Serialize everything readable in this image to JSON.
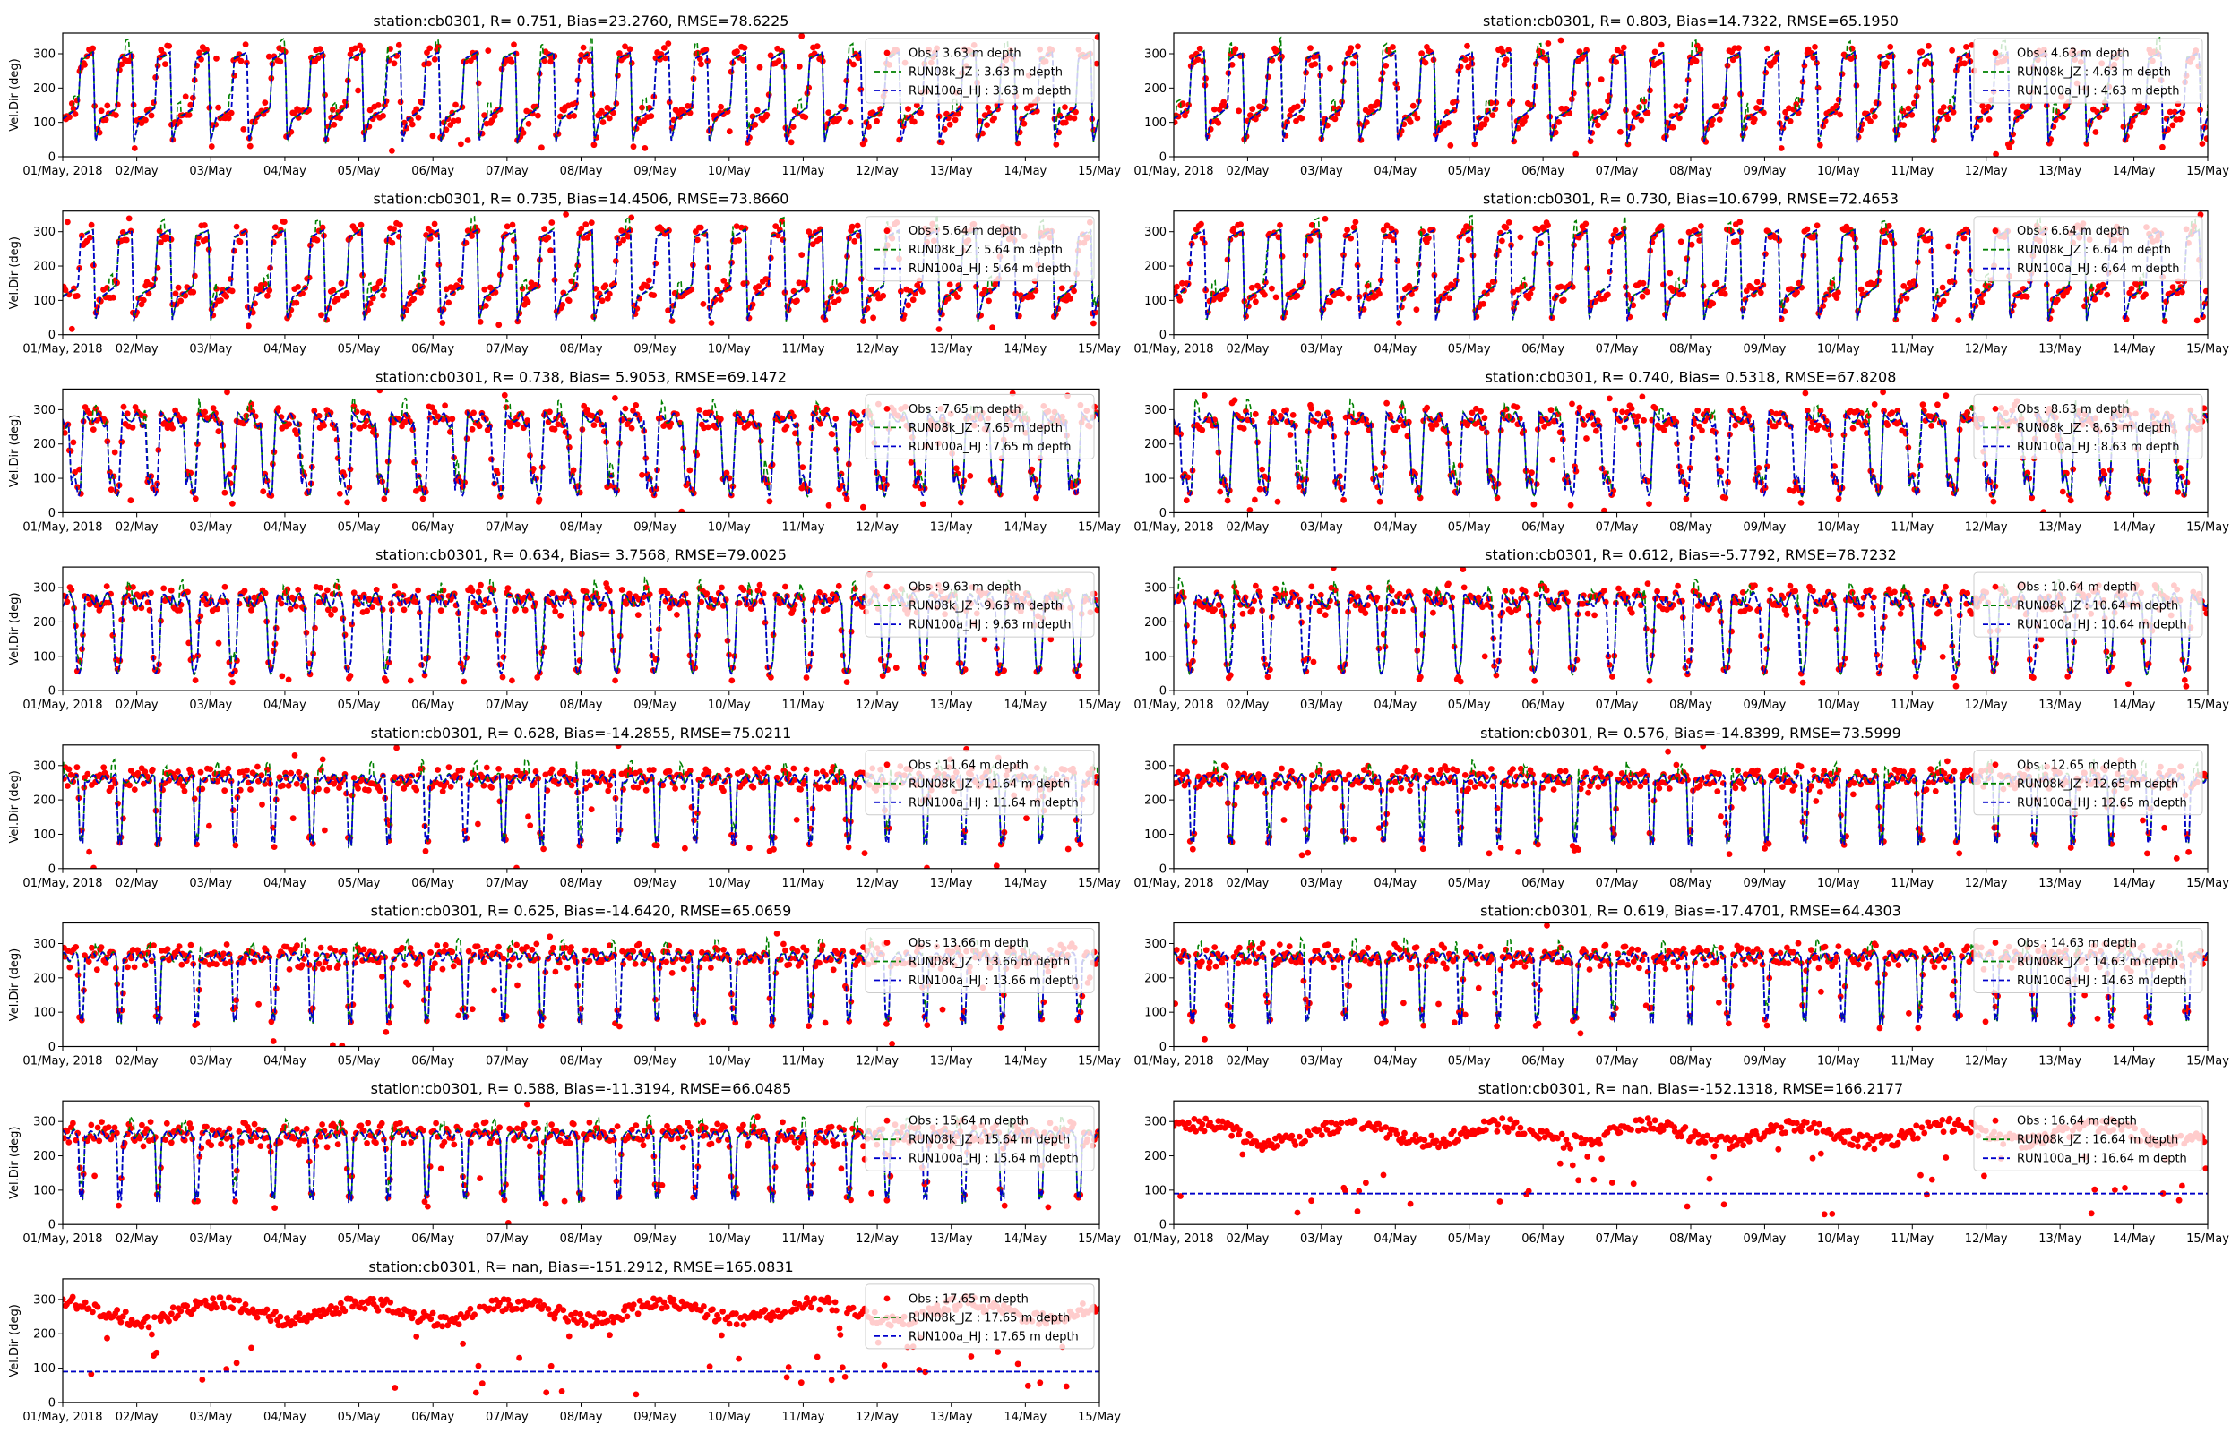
{
  "figure": {
    "x_tick_labels": [
      "01/May, 2018",
      "02/May",
      "03/May",
      "04/May",
      "05/May",
      "06/May",
      "07/May",
      "08/May",
      "09/May",
      "10/May",
      "11/May",
      "12/May",
      "13/May",
      "14/May",
      "15/May"
    ],
    "y_ticks": [
      0,
      100,
      200,
      300
    ],
    "ylabel": "Vel.Dir (deg)",
    "colors": {
      "obs": "#ff0000",
      "run08k": "#008000",
      "run100a": "#0000cc"
    }
  },
  "chart_data": [
    {
      "type": "scatter",
      "title": "station:cb0301, R= 0.751, Bias=23.2760, RMSE=78.6225",
      "depth": "3.63",
      "pattern": "dir1",
      "ylabel": "Vel.Dir (deg)",
      "ylim": [
        0,
        360
      ],
      "x_range": [
        "01/May, 2018",
        "15/May"
      ],
      "legend": [
        "Obs : 3.63 m depth",
        "RUN08k_JZ : 3.63 m depth",
        "RUN100a_HJ : 3.63 m depth"
      ],
      "legend_loc": "upper right"
    },
    {
      "type": "scatter",
      "title": "station:cb0301, R= 0.803, Bias=14.7322, RMSE=65.1950",
      "depth": "4.63",
      "pattern": "dir1",
      "ylabel": "",
      "ylim": [
        0,
        360
      ],
      "x_range": [
        "01/May, 2018",
        "15/May"
      ],
      "legend": [
        "Obs : 4.63 m depth",
        "RUN08k_JZ : 4.63 m depth",
        "RUN100a_HJ : 4.63 m depth"
      ],
      "legend_loc": "upper right"
    },
    {
      "type": "scatter",
      "title": "station:cb0301, R= 0.735, Bias=14.4506, RMSE=73.8660",
      "depth": "5.64",
      "pattern": "dir1",
      "ylabel": "Vel.Dir (deg)",
      "ylim": [
        0,
        360
      ],
      "x_range": [
        "01/May, 2018",
        "15/May"
      ],
      "legend": [
        "Obs : 5.64 m depth",
        "RUN08k_JZ : 5.64 m depth",
        "RUN100a_HJ : 5.64 m depth"
      ],
      "legend_loc": "upper right"
    },
    {
      "type": "scatter",
      "title": "station:cb0301, R= 0.730, Bias=10.6799, RMSE=72.4653",
      "depth": "6.64",
      "pattern": "dir1",
      "ylabel": "",
      "ylim": [
        0,
        360
      ],
      "x_range": [
        "01/May, 2018",
        "15/May"
      ],
      "legend": [
        "Obs : 6.64 m depth",
        "RUN08k_JZ : 6.64 m depth",
        "RUN100a_HJ : 6.64 m depth"
      ],
      "legend_loc": "upper right"
    },
    {
      "type": "scatter",
      "title": "station:cb0301, R= 0.738, Bias= 5.9053, RMSE=69.1472",
      "depth": "7.65",
      "pattern": "dir2",
      "ylabel": "Vel.Dir (deg)",
      "ylim": [
        0,
        360
      ],
      "x_range": [
        "01/May, 2018",
        "15/May"
      ],
      "legend": [
        "Obs : 7.65 m depth",
        "RUN08k_JZ : 7.65 m depth",
        "RUN100a_HJ : 7.65 m depth"
      ],
      "legend_loc": "upper right"
    },
    {
      "type": "scatter",
      "title": "station:cb0301, R= 0.740, Bias= 0.5318, RMSE=67.8208",
      "depth": "8.63",
      "pattern": "dir2",
      "ylabel": "",
      "ylim": [
        0,
        360
      ],
      "x_range": [
        "01/May, 2018",
        "15/May"
      ],
      "legend": [
        "Obs : 8.63 m depth",
        "RUN08k_JZ : 8.63 m depth",
        "RUN100a_HJ : 8.63 m depth"
      ],
      "legend_loc": "upper right"
    },
    {
      "type": "scatter",
      "title": "station:cb0301, R= 0.634, Bias= 3.7568, RMSE=79.0025",
      "depth": "9.63",
      "pattern": "dir3",
      "ylabel": "Vel.Dir (deg)",
      "ylim": [
        0,
        360
      ],
      "x_range": [
        "01/May, 2018",
        "15/May"
      ],
      "legend": [
        "Obs : 9.63 m depth",
        "RUN08k_JZ : 9.63 m depth",
        "RUN100a_HJ : 9.63 m depth"
      ],
      "legend_loc": "upper right"
    },
    {
      "type": "scatter",
      "title": "station:cb0301, R= 0.612, Bias=-5.7792, RMSE=78.7232",
      "depth": "10.64",
      "pattern": "dir3",
      "ylabel": "",
      "ylim": [
        0,
        360
      ],
      "x_range": [
        "01/May, 2018",
        "15/May"
      ],
      "legend": [
        "Obs : 10.64 m depth",
        "RUN08k_JZ : 10.64 m depth",
        "RUN100a_HJ : 10.64 m depth"
      ],
      "legend_loc": "upper right"
    },
    {
      "type": "scatter",
      "title": "station:cb0301, R= 0.628, Bias=-14.2855, RMSE=75.0211",
      "depth": "11.64",
      "pattern": "dir4",
      "ylabel": "Vel.Dir (deg)",
      "ylim": [
        0,
        360
      ],
      "x_range": [
        "01/May, 2018",
        "15/May"
      ],
      "legend": [
        "Obs : 11.64 m depth",
        "RUN08k_JZ : 11.64 m depth",
        "RUN100a_HJ : 11.64 m depth"
      ],
      "legend_loc": "upper right"
    },
    {
      "type": "scatter",
      "title": "station:cb0301, R= 0.576, Bias=-14.8399, RMSE=73.5999",
      "depth": "12.65",
      "pattern": "dir4",
      "ylabel": "",
      "ylim": [
        0,
        360
      ],
      "x_range": [
        "01/May, 2018",
        "15/May"
      ],
      "legend": [
        "Obs : 12.65 m depth",
        "RUN08k_JZ : 12.65 m depth",
        "RUN100a_HJ : 12.65 m depth"
      ],
      "legend_loc": "upper right"
    },
    {
      "type": "scatter",
      "title": "station:cb0301, R= 0.625, Bias=-14.6420, RMSE=65.0659",
      "depth": "13.66",
      "pattern": "dir4",
      "ylabel": "Vel.Dir (deg)",
      "ylim": [
        0,
        360
      ],
      "x_range": [
        "01/May, 2018",
        "15/May"
      ],
      "legend": [
        "Obs : 13.66 m depth",
        "RUN08k_JZ : 13.66 m depth",
        "RUN100a_HJ : 13.66 m depth"
      ],
      "legend_loc": "upper right"
    },
    {
      "type": "scatter",
      "title": "station:cb0301, R= 0.619, Bias=-17.4701, RMSE=64.4303",
      "depth": "14.63",
      "pattern": "dir4",
      "ylabel": "",
      "ylim": [
        0,
        360
      ],
      "x_range": [
        "01/May, 2018",
        "15/May"
      ],
      "legend": [
        "Obs : 14.63 m depth",
        "RUN08k_JZ : 14.63 m depth",
        "RUN100a_HJ : 14.63 m depth"
      ],
      "legend_loc": "upper right"
    },
    {
      "type": "scatter",
      "title": "station:cb0301, R= 0.588, Bias=-11.3194, RMSE=66.0485",
      "depth": "15.64",
      "pattern": "dir4",
      "ylabel": "Vel.Dir (deg)",
      "ylim": [
        0,
        360
      ],
      "x_range": [
        "01/May, 2018",
        "15/May"
      ],
      "legend": [
        "Obs : 15.64 m depth",
        "RUN08k_JZ : 15.64 m depth",
        "RUN100a_HJ : 15.64 m depth"
      ],
      "legend_loc": "upper right"
    },
    {
      "type": "scatter",
      "title": "station:cb0301, R=   nan, Bias=-152.1318, RMSE=166.2177",
      "depth": "16.64",
      "pattern": "flat",
      "model_const": 90,
      "ylabel": "",
      "ylim": [
        0,
        360
      ],
      "x_range": [
        "01/May, 2018",
        "15/May"
      ],
      "legend": [
        "Obs : 16.64 m depth",
        "RUN08k_JZ : 16.64 m depth",
        "RUN100a_HJ : 16.64 m depth"
      ],
      "legend_loc": "upper right"
    },
    {
      "type": "scatter",
      "title": "station:cb0301, R=   nan, Bias=-151.2912, RMSE=165.0831",
      "depth": "17.65",
      "pattern": "flat",
      "model_const": 90,
      "ylabel": "Vel.Dir (deg)",
      "ylim": [
        0,
        360
      ],
      "x_range": [
        "01/May, 2018",
        "15/May"
      ],
      "legend": [
        "Obs : 17.65 m depth",
        "RUN08k_JZ : 17.65 m depth",
        "RUN100a_HJ : 17.65 m depth"
      ],
      "legend_loc": "upper right"
    }
  ]
}
